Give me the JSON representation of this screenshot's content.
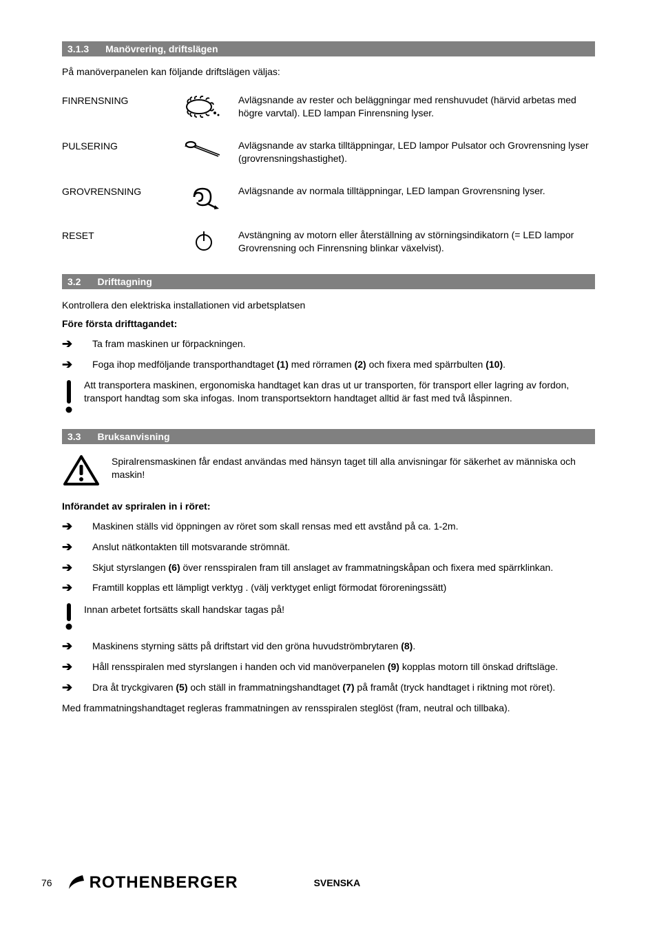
{
  "section_313": {
    "num": "3.1.3",
    "title": "Manövrering, driftslägen"
  },
  "intro_313": "På manöverpanelen kan följande driftslägen väljas:",
  "modes": [
    {
      "label": "FINRENSNING",
      "desc": "Avlägsnande av rester och beläggningar med renshuvudet (härvid arbetas med högre varvtal). LED lampan Finrensning lyser."
    },
    {
      "label": "PULSERING",
      "desc": "Avlägsnande av starka tilltäppningar, LED lampor Pulsator och Grovrensning lyser (grovrensningshastighet)."
    },
    {
      "label": "GROVRENSNING",
      "desc": "Avlägsnande av normala tilltäppningar, LED lampan Grovrensning lyser."
    },
    {
      "label": "RESET",
      "desc": "Avstängning av motorn eller återställning av störningsindikatorn (= LED lampor Grovrensning och Finrensning blinkar växelvist)."
    }
  ],
  "section_32": {
    "num": "3.2",
    "title": "Drifttagning"
  },
  "text_32_a": "Kontrollera den elektriska installationen vid arbetsplatsen",
  "heading_32_b": "Före första drifttagandet:",
  "bullets_32": [
    {
      "html": "Ta fram maskinen ur förpackningen."
    },
    {
      "html": "Foga ihop medföljande transporthandtaget <b>(1)</b> med rörramen <b>(2)</b> och fixera med spärrbulten <b>(10)</b>."
    }
  ],
  "note_32": "Att transportera maskinen, ergonomiska handtaget kan dras ut ur transporten, för transport eller lagring av fordon, transport handtag som ska infogas. Inom transportsektorn handtaget alltid är fast med två låspinnen.",
  "section_33": {
    "num": "3.3",
    "title": "Bruksanvisning"
  },
  "warn_33": "Spiralrensmaskinen får endast användas med hänsyn taget till alla anvisningar för säkerhet av människa och maskin!",
  "heading_33_b": "Införandet av spriralen in i röret:",
  "bullets_33a": [
    {
      "html": "Maskinen ställs vid öppningen av röret som skall rensas med ett avstånd på ca. 1-2m."
    },
    {
      "html": "Anslut nätkontakten till motsvarande strömnät."
    },
    {
      "html": "Skjut styrslangen <b>(6)</b> över rensspiralen fram till anslaget av frammatningskåpan och fixera med spärrklinkan."
    },
    {
      "html": "Framtill kopplas ett lämpligt verktyg . (välj verktyget enligt förmodat föroreningssätt)"
    }
  ],
  "note_33": "Innan arbetet fortsätts skall handskar tagas på!",
  "bullets_33b": [
    {
      "html": "Maskinens styrning sätts på driftstart vid den gröna huvudströmbrytaren <b>(8)</b>."
    },
    {
      "html": "Håll rensspiralen med styrslangen i handen och vid manöverpanelen <b>(9)</b> kopplas motorn till önskad driftsläge."
    },
    {
      "html": "Dra åt tryckgivaren <b>(5)</b> och ställ in frammatningshandtaget <b>(7)</b> på framåt (tryck handtaget i riktning mot röret)."
    }
  ],
  "closing_33": "Med frammatningshandtaget regleras frammatningen av rensspiralen steglöst (fram, neutral och tillbaka).",
  "footer": {
    "page": "76",
    "brand": "ROTHENBERGER",
    "lang": "SVENSKA"
  }
}
